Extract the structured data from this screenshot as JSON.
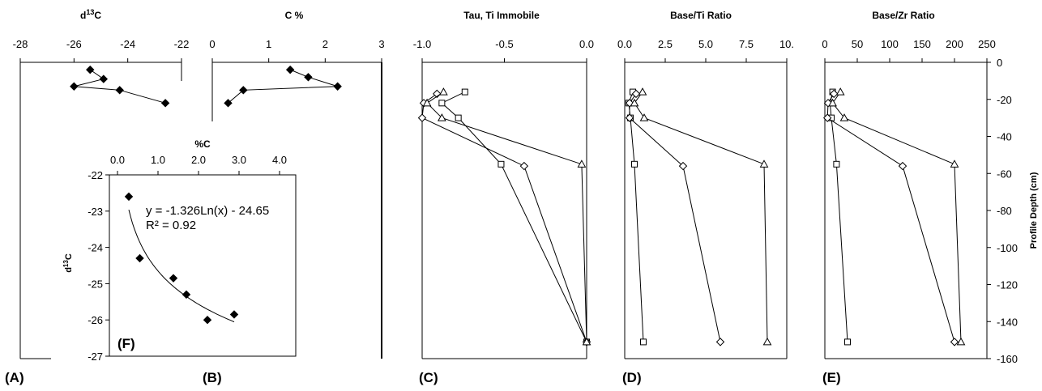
{
  "chart_data": [
    {
      "id": "A",
      "type": "line",
      "panel_label": "(A)",
      "title": "d13C",
      "title_sup": "13",
      "title_pre": "d",
      "title_post": "C",
      "xlim": [
        -28,
        -22
      ],
      "xticks": [
        -28,
        -26,
        -24,
        -22
      ],
      "ylim": [
        -160,
        0
      ],
      "invert_y": false,
      "series": [
        {
          "marker": "diamond-filled",
          "x": [
            -25.4,
            -24.9,
            -26.0,
            -24.3,
            -22.6
          ],
          "y": [
            -4,
            -9,
            -13,
            -15,
            -22
          ]
        }
      ]
    },
    {
      "id": "B",
      "type": "line",
      "panel_label": "(B)",
      "title": "C %",
      "xlim": [
        0,
        3
      ],
      "xticks": [
        0,
        1,
        2,
        3
      ],
      "ylim": [
        -160,
        0
      ],
      "series": [
        {
          "marker": "diamond-filled",
          "x": [
            1.38,
            1.7,
            2.22,
            0.55,
            0.28
          ],
          "y": [
            -4,
            -8,
            -13,
            -15,
            -22
          ]
        }
      ]
    },
    {
      "id": "C",
      "type": "line",
      "panel_label": "(C)",
      "title": "Tau, Ti Immobile",
      "xlim": [
        -1.0,
        0.0
      ],
      "xticks": [
        -1.0,
        -0.5,
        0.0
      ],
      "xtick_labels": [
        "-1.0",
        "-0.5",
        "0.0"
      ],
      "ylim": [
        -160,
        0
      ],
      "series": [
        {
          "marker": "square-open",
          "x": [
            -0.74,
            -0.88,
            -0.78,
            -0.52,
            0.0
          ],
          "y": [
            -16,
            -22,
            -30,
            -55,
            -151
          ]
        },
        {
          "marker": "diamond-open",
          "x": [
            -0.91,
            -0.99,
            -1.0,
            -0.38,
            0.0
          ],
          "y": [
            -17,
            -22,
            -30,
            -56,
            -151
          ]
        },
        {
          "marker": "triangle-open",
          "x": [
            -0.87,
            -0.97,
            -0.88,
            -0.03,
            0.0
          ],
          "y": [
            -16,
            -22,
            -30,
            -55,
            -151
          ]
        }
      ]
    },
    {
      "id": "D",
      "type": "line",
      "panel_label": "(D)",
      "title": "Base/Ti Ratio",
      "xlim": [
        0,
        10
      ],
      "xticks": [
        0,
        2.5,
        5,
        7.5,
        10
      ],
      "xtick_labels": [
        "0.0",
        "2.5",
        "5.0",
        "7.5",
        "10."
      ],
      "ylim": [
        -160,
        0
      ],
      "series": [
        {
          "marker": "square-open",
          "x": [
            0.5,
            0.25,
            0.35,
            0.6,
            1.15
          ],
          "y": [
            -16,
            -22,
            -30,
            -55,
            -151
          ]
        },
        {
          "marker": "diamond-open",
          "x": [
            0.7,
            0.3,
            0.3,
            3.6,
            5.9
          ],
          "y": [
            -17,
            -22,
            -30,
            -56,
            -151
          ]
        },
        {
          "marker": "triangle-open",
          "x": [
            1.1,
            0.6,
            1.2,
            8.6,
            8.8
          ],
          "y": [
            -16,
            -22,
            -30,
            -55,
            -151
          ]
        }
      ]
    },
    {
      "id": "E",
      "type": "line",
      "panel_label": "(E)",
      "title": "Base/Zr Ratio",
      "xlim": [
        0,
        250
      ],
      "xticks": [
        0,
        50,
        100,
        150,
        200,
        250
      ],
      "ylim": [
        -160,
        0
      ],
      "ylabel": "Profile Depth (cm)",
      "yticks": [
        0,
        -20,
        -40,
        -60,
        -80,
        -100,
        -120,
        -140,
        -160
      ],
      "series": [
        {
          "marker": "square-open",
          "x": [
            12,
            8,
            10,
            18,
            35
          ],
          "y": [
            -16,
            -22,
            -30,
            -55,
            -151
          ]
        },
        {
          "marker": "diamond-open",
          "x": [
            14,
            5,
            4,
            120,
            200
          ],
          "y": [
            -17,
            -22,
            -30,
            -56,
            -151
          ]
        },
        {
          "marker": "triangle-open",
          "x": [
            24,
            12,
            30,
            200,
            210
          ],
          "y": [
            -16,
            -22,
            -30,
            -55,
            -151
          ]
        }
      ]
    },
    {
      "id": "F",
      "type": "scatter",
      "panel_label": "(F)",
      "title": "%C",
      "ylabel": "d13C",
      "xlim": [
        -0.2,
        4.4
      ],
      "xticks": [
        0,
        1,
        2,
        3,
        4
      ],
      "xtick_labels": [
        "0.0",
        "1.0",
        "2.0",
        "3.0",
        "4.0"
      ],
      "ylim": [
        -27,
        -22
      ],
      "yticks": [
        -22,
        -23,
        -24,
        -25,
        -26,
        -27
      ],
      "points": {
        "x": [
          0.28,
          0.55,
          1.38,
          1.7,
          2.22,
          2.88
        ],
        "y": [
          -22.6,
          -24.3,
          -24.85,
          -25.3,
          -26.0,
          -25.85
        ]
      },
      "fit": {
        "equation": "y = -1.326Ln(x) - 24.65",
        "r2": "R² = 0.92",
        "a": -1.326,
        "b": -24.65,
        "x_from": 0.28,
        "x_to": 2.88
      }
    }
  ]
}
